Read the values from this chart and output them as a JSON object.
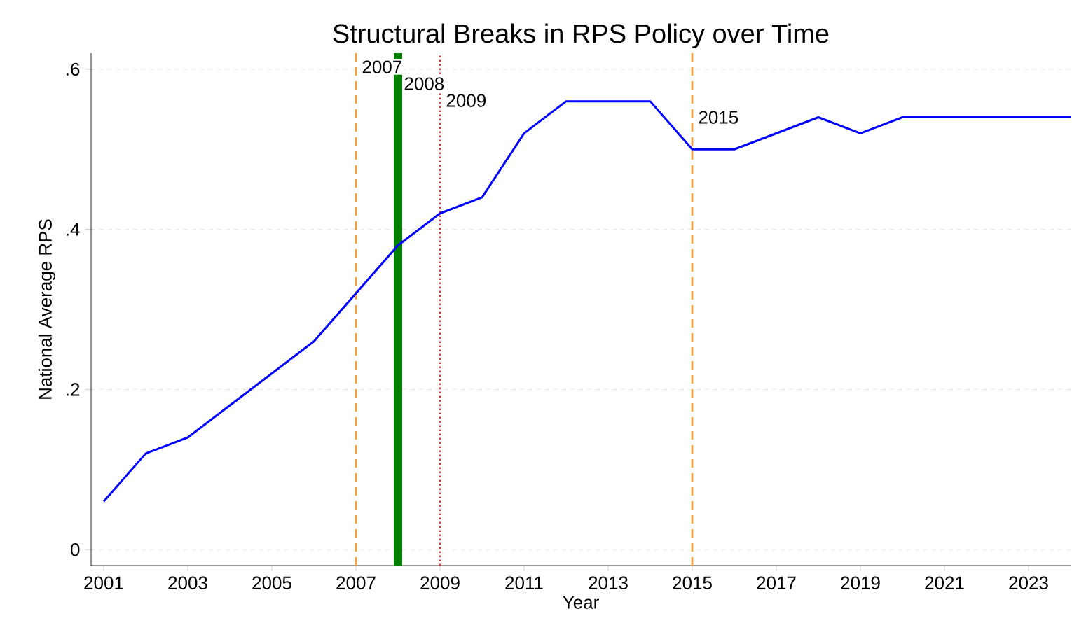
{
  "chart_data": {
    "type": "line",
    "title": "Structural Breaks in RPS Policy over Time",
    "xlabel": "Year",
    "ylabel": "National Average RPS",
    "x": [
      2001,
      2002,
      2003,
      2004,
      2005,
      2006,
      2007,
      2008,
      2009,
      2010,
      2011,
      2012,
      2013,
      2014,
      2015,
      2016,
      2017,
      2018,
      2019,
      2020,
      2021,
      2022,
      2023,
      2024
    ],
    "series": [
      {
        "color": "#0000ff",
        "values": [
          0.06,
          0.12,
          0.14,
          0.18,
          0.22,
          0.26,
          0.32,
          0.38,
          0.42,
          0.44,
          0.52,
          0.56,
          0.56,
          0.56,
          0.5,
          0.5,
          0.52,
          0.54,
          0.52,
          0.54,
          0.54,
          0.54,
          0.54,
          0.54
        ]
      }
    ],
    "xlim": [
      2000.7,
      2024
    ],
    "ylim": [
      -0.02,
      0.62
    ],
    "xticks": [
      2001,
      2003,
      2005,
      2007,
      2009,
      2011,
      2013,
      2015,
      2017,
      2019,
      2021,
      2023
    ],
    "yticks": [
      0,
      {
        "value": 0.2,
        "label": ".2"
      },
      {
        "value": 0.4,
        "label": ".4"
      },
      {
        "value": 0.6,
        "label": ".6"
      }
    ],
    "grid": "y",
    "ref_lines": [
      {
        "axis": "x",
        "value": 2007,
        "label": "2007",
        "color": "#ff9933",
        "line_style": "dashed"
      },
      {
        "axis": "x",
        "value": 2008,
        "label": "2008",
        "color": "#008000",
        "line_style": "solid"
      },
      {
        "axis": "x",
        "value": 2009,
        "label": "2009",
        "color": "#dd3333",
        "line_style": "dotted"
      },
      {
        "axis": "x",
        "value": 2015,
        "label": "2015",
        "color": "#ff9933",
        "line_style": "dashed"
      }
    ]
  }
}
